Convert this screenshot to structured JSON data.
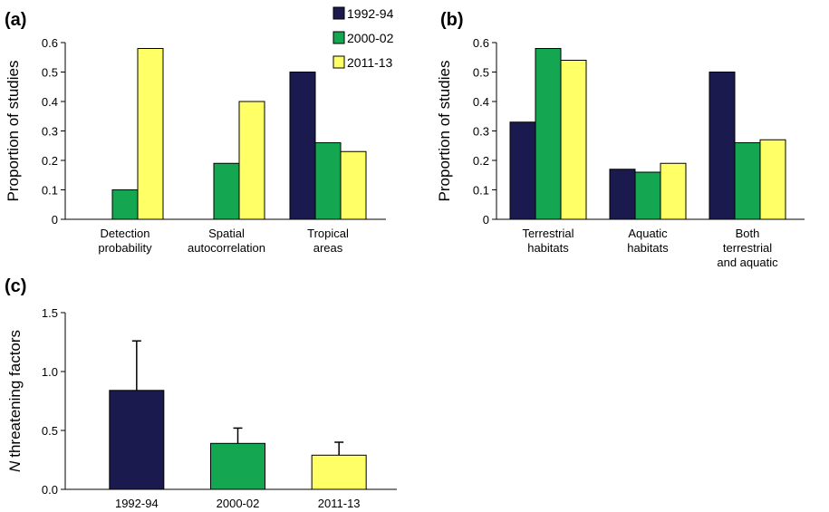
{
  "chart_data": [
    {
      "type": "grouped-bar",
      "label": "(a)",
      "y_label": "Proportion of studies",
      "categories": [
        [
          "Detection",
          "probability"
        ],
        [
          "Spatial",
          "autocorrelation"
        ],
        [
          "Tropical",
          "areas"
        ]
      ],
      "series": [
        {
          "name": "1992-94",
          "color": "#1b1a4f",
          "values": [
            0,
            0,
            0.5
          ]
        },
        {
          "name": "2000-02",
          "color": "#14a651",
          "values": [
            0.1,
            0.19,
            0.26
          ]
        },
        {
          "name": "2011-13",
          "color": "#ffff66",
          "values": [
            0.58,
            0.4,
            0.23
          ]
        }
      ],
      "ylim": [
        0,
        0.6
      ],
      "yticks": [
        0,
        0.1,
        0.2,
        0.3,
        0.4,
        0.5,
        0.6
      ],
      "legend": "top-right"
    },
    {
      "type": "grouped-bar",
      "label": "(b)",
      "y_label": "Proportion of studies",
      "categories": [
        [
          "Terrestrial",
          "habitats"
        ],
        [
          "Aquatic",
          "habitats"
        ],
        [
          "Both",
          "terrestrial",
          "and aquatic"
        ]
      ],
      "series": [
        {
          "name": "1992-94",
          "color": "#1b1a4f",
          "values": [
            0.33,
            0.17,
            0.5
          ]
        },
        {
          "name": "2000-02",
          "color": "#14a651",
          "values": [
            0.58,
            0.16,
            0.26
          ]
        },
        {
          "name": "2011-13",
          "color": "#ffff66",
          "values": [
            0.54,
            0.19,
            0.27
          ]
        }
      ],
      "ylim": [
        0,
        0.6
      ],
      "yticks": [
        0,
        0.1,
        0.2,
        0.3,
        0.4,
        0.5,
        0.6
      ]
    },
    {
      "type": "bar",
      "label": "(c)",
      "y_label": [
        "N",
        "threatening factors"
      ],
      "categories": [
        [
          "1992-94"
        ],
        [
          "2000-02"
        ],
        [
          "2011-13"
        ]
      ],
      "values": [
        0.84,
        0.39,
        0.29
      ],
      "errors": [
        0.42,
        0.13,
        0.11
      ],
      "colors": [
        "#1b1a4f",
        "#14a651",
        "#ffff66"
      ],
      "ylim": [
        0,
        1.5
      ],
      "yticks": [
        {
          "value": 0,
          "label": "0.0"
        },
        0.5,
        {
          "value": 1,
          "label": "1.0"
        },
        1.5
      ]
    }
  ]
}
